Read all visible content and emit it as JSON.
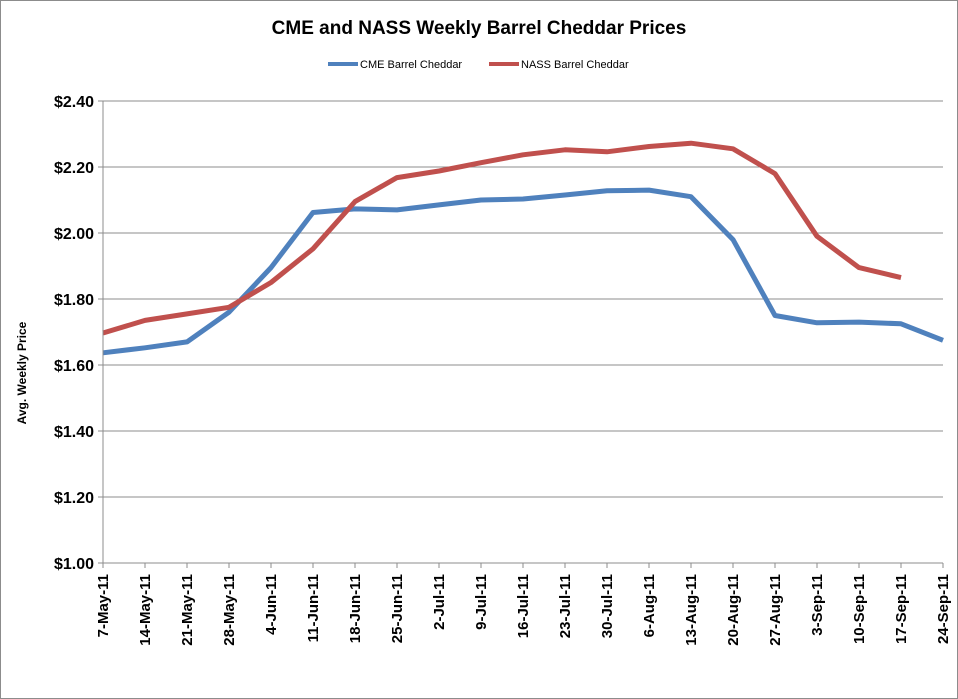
{
  "chart_data": {
    "type": "line",
    "title": "CME and NASS Weekly Barrel Cheddar Prices",
    "xlabel": "",
    "ylabel": "Avg. Weekly Price",
    "ylim": [
      1.0,
      2.4
    ],
    "yticks": [
      "$1.00",
      "$1.20",
      "$1.40",
      "$1.60",
      "$1.80",
      "$2.00",
      "$2.20",
      "$2.40"
    ],
    "grid": "horizontal",
    "legend_position": "top",
    "categories": [
      "7-May-11",
      "14-May-11",
      "21-May-11",
      "28-May-11",
      "4-Jun-11",
      "11-Jun-11",
      "18-Jun-11",
      "25-Jun-11",
      "2-Jul-11",
      "9-Jul-11",
      "16-Jul-11",
      "23-Jul-11",
      "30-Jul-11",
      "6-Aug-11",
      "13-Aug-11",
      "20-Aug-11",
      "27-Aug-11",
      "3-Sep-11",
      "10-Sep-11",
      "17-Sep-11",
      "24-Sep-11"
    ],
    "series": [
      {
        "name": "CME Barrel Cheddar",
        "color": "#4F81BD",
        "values": [
          1.637,
          1.652,
          1.67,
          1.76,
          1.895,
          2.062,
          2.073,
          2.07,
          2.085,
          2.1,
          2.103,
          2.115,
          2.128,
          2.13,
          2.11,
          1.98,
          1.75,
          1.728,
          1.73,
          1.725,
          1.675
        ]
      },
      {
        "name": "NASS Barrel Cheddar",
        "color": "#C0504D",
        "values": [
          1.697,
          1.735,
          1.755,
          1.775,
          1.85,
          1.952,
          2.095,
          2.168,
          2.188,
          2.213,
          2.237,
          2.252,
          2.246,
          2.262,
          2.272,
          2.255,
          2.18,
          1.99,
          1.895,
          1.865,
          null
        ]
      }
    ]
  }
}
